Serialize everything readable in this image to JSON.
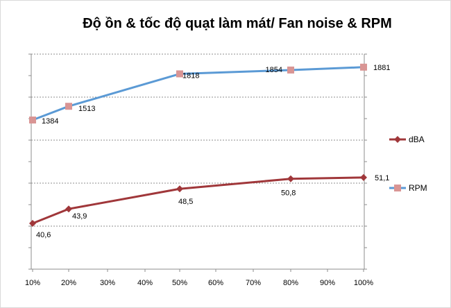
{
  "chart_data": {
    "type": "line",
    "title": "Độ ồn & tốc độ quạt làm mát/ Fan noise & RPM",
    "categories": [
      "10%",
      "20%",
      "30%",
      "40%",
      "50%",
      "60%",
      "70%",
      "80%",
      "90%",
      "100%"
    ],
    "series": [
      {
        "name": "dBA",
        "color": "#a0373a",
        "marker": "diamond",
        "points": [
          {
            "x": "10%",
            "value": 40.6,
            "label": "40,6"
          },
          {
            "x": "20%",
            "value": 43.9,
            "label": "43,9"
          },
          {
            "x": "50%",
            "value": 48.5,
            "label": "48,5"
          },
          {
            "x": "80%",
            "value": 50.8,
            "label": "50,8"
          },
          {
            "x": "100%",
            "value": 51.1,
            "label": "51,1"
          }
        ]
      },
      {
        "name": "RPM",
        "color": "#5b9ad5",
        "marker_color": "#d99594",
        "marker": "square",
        "points": [
          {
            "x": "10%",
            "value": 1384,
            "label": "1384"
          },
          {
            "x": "20%",
            "value": 1513,
            "label": "1513"
          },
          {
            "x": "50%",
            "value": 1818,
            "label": "1818"
          },
          {
            "x": "80%",
            "value": 1854,
            "label": "1854"
          },
          {
            "x": "100%",
            "value": 1881,
            "label": "1881"
          }
        ]
      }
    ],
    "xlabel": "",
    "ylabel": "",
    "grid": true,
    "legend": "right"
  }
}
